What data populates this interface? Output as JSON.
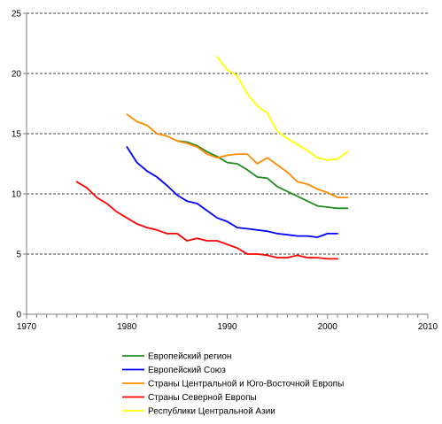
{
  "chart_data": {
    "type": "line",
    "title": "",
    "xlabel": "",
    "ylabel": "",
    "xlim": [
      1970,
      2010
    ],
    "ylim": [
      0,
      25
    ],
    "x_ticks": [
      "1970",
      "1980",
      "1990",
      "2000",
      "2010"
    ],
    "y_ticks": [
      "0",
      "5",
      "10",
      "15",
      "20",
      "25"
    ],
    "grid": "horizontal dashed",
    "legend_position": "bottom",
    "series": [
      {
        "name": "Европейский регион",
        "color": "#228B22",
        "x": [
          1985,
          1986,
          1987,
          1988,
          1989,
          1990,
          1991,
          1992,
          1993,
          1994,
          1995,
          1996,
          1997,
          1998,
          1999,
          2000,
          2001,
          2002
        ],
        "y": [
          14.4,
          14.3,
          14.0,
          13.5,
          13.1,
          12.6,
          12.5,
          12.0,
          11.4,
          11.3,
          10.6,
          10.2,
          9.8,
          9.4,
          9.0,
          8.9,
          8.8,
          8.8
        ]
      },
      {
        "name": "Европейский Союз",
        "color": "#0000FF",
        "x": [
          1980,
          1981,
          1982,
          1983,
          1984,
          1985,
          1986,
          1987,
          1988,
          1989,
          1990,
          1991,
          1992,
          1993,
          1994,
          1995,
          1996,
          1997,
          1998,
          1999,
          2000,
          2001
        ],
        "y": [
          13.9,
          12.6,
          11.9,
          11.4,
          10.7,
          9.9,
          9.4,
          9.2,
          8.6,
          8.0,
          7.7,
          7.2,
          7.1,
          7.0,
          6.9,
          6.7,
          6.6,
          6.5,
          6.5,
          6.4,
          6.7,
          6.7
        ]
      },
      {
        "name": "Страны Центральной и Юго-Восточной Европы",
        "color": "#FF8C00",
        "x": [
          1980,
          1981,
          1982,
          1983,
          1984,
          1985,
          1986,
          1987,
          1988,
          1989,
          1990,
          1991,
          1992,
          1993,
          1994,
          1995,
          1996,
          1997,
          1998,
          1999,
          2000,
          2001,
          2002
        ],
        "y": [
          16.6,
          16.0,
          15.7,
          15.0,
          14.8,
          14.4,
          14.2,
          13.9,
          13.3,
          13.0,
          13.2,
          13.3,
          13.3,
          12.5,
          13.0,
          12.4,
          11.8,
          11.0,
          10.8,
          10.4,
          10.1,
          9.7,
          9.7
        ]
      },
      {
        "name": "Страны Северной Европы",
        "color": "#FF0000",
        "x": [
          1975,
          1976,
          1977,
          1978,
          1979,
          1980,
          1981,
          1982,
          1983,
          1984,
          1985,
          1986,
          1987,
          1988,
          1989,
          1990,
          1991,
          1992,
          1993,
          1994,
          1995,
          1996,
          1997,
          1998,
          1999,
          2000,
          2001
        ],
        "y": [
          11.0,
          10.5,
          9.7,
          9.2,
          8.5,
          8.0,
          7.5,
          7.2,
          7.0,
          6.7,
          6.7,
          6.1,
          6.3,
          6.1,
          6.1,
          5.8,
          5.5,
          5.0,
          5.0,
          4.9,
          4.7,
          4.7,
          4.9,
          4.7,
          4.7,
          4.6,
          4.6
        ]
      },
      {
        "name": "Республики Центральной Азии",
        "color": "#FFFF00",
        "x": [
          1989,
          1990,
          1991,
          1992,
          1993,
          1994,
          1995,
          1996,
          1997,
          1998,
          1999,
          2000,
          2001,
          2002
        ],
        "y": [
          21.4,
          20.3,
          19.8,
          18.3,
          17.3,
          16.7,
          15.2,
          14.6,
          14.1,
          13.6,
          13.0,
          12.8,
          12.9,
          13.5
        ]
      }
    ]
  }
}
